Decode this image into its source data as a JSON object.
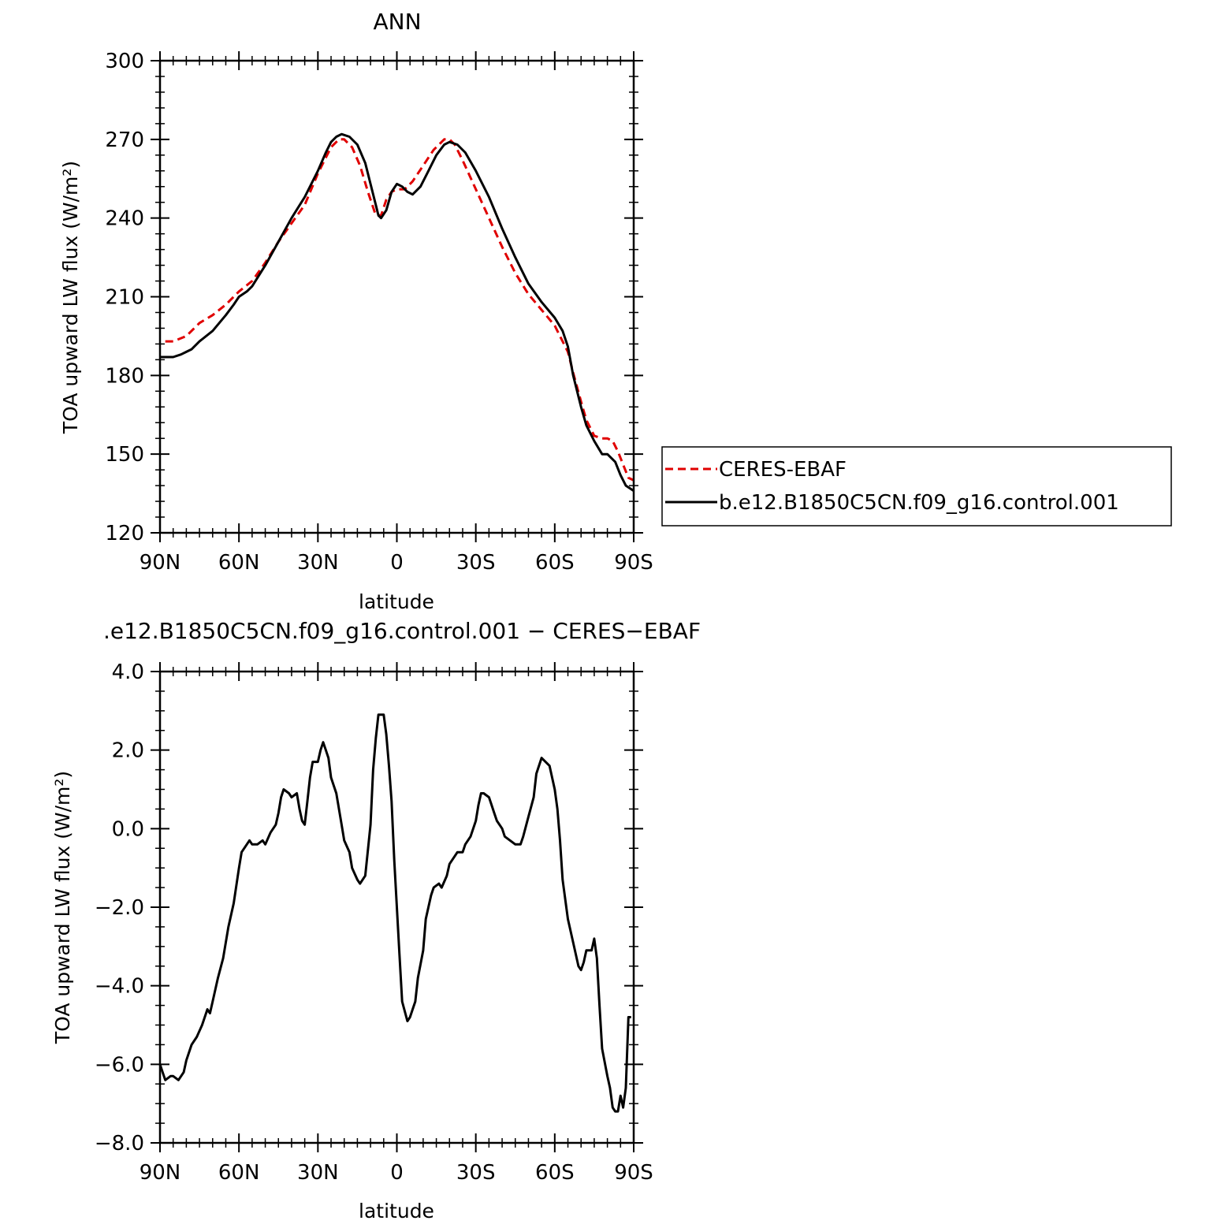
{
  "chart_data": [
    {
      "type": "line",
      "title": "ANN",
      "xlabel": "latitude",
      "ylabel": "TOA upward LW flux (W/m²)",
      "xlim": [
        90,
        -90
      ],
      "ylim": [
        120,
        300
      ],
      "x_tick_values": [
        90,
        60,
        30,
        0,
        -30,
        -60,
        -90
      ],
      "x_tick_labels": [
        "90N",
        "60N",
        "30N",
        "0",
        "30S",
        "60S",
        "90S"
      ],
      "y_tick_values": [
        120,
        150,
        180,
        210,
        240,
        270,
        300
      ],
      "y_tick_labels": [
        "120",
        "150",
        "180",
        "210",
        "240",
        "270",
        "300"
      ],
      "legend": "right",
      "series": [
        {
          "name": "CERES-EBAF",
          "color": "#e00000",
          "dash": "dashed",
          "x": [
            88,
            85,
            80,
            75,
            70,
            65,
            60,
            55,
            50,
            45,
            40,
            35,
            30,
            25,
            22,
            20,
            17,
            14,
            11,
            8,
            6,
            4,
            2,
            0,
            -3,
            -6,
            -10,
            -14,
            -18,
            -20,
            -22,
            -25,
            -30,
            -35,
            -40,
            -45,
            -50,
            -55,
            -60,
            -65,
            -67,
            -70,
            -72,
            -75,
            -78,
            -80,
            -82,
            -84,
            -86,
            -88,
            -90
          ],
          "y": [
            193,
            193,
            195,
            200,
            203,
            207,
            212,
            216,
            223,
            231,
            238,
            245,
            257,
            267,
            270,
            270,
            267,
            260,
            250,
            241,
            241,
            247,
            250,
            251,
            251,
            254,
            260,
            266,
            270,
            270,
            268,
            262,
            251,
            240,
            229,
            219,
            211,
            205,
            199,
            189,
            181,
            170,
            163,
            157,
            156,
            156,
            155,
            151,
            146,
            141,
            140
          ]
        },
        {
          "name": "b.e12.B1850C5CN.f09_g16.control.001",
          "color": "#000000",
          "dash": "solid",
          "x": [
            90,
            88,
            85,
            82,
            80,
            78,
            75,
            70,
            65,
            62,
            60,
            57,
            55,
            50,
            45,
            40,
            35,
            30,
            27,
            25,
            23,
            21,
            18,
            15,
            12,
            10,
            8,
            7,
            6,
            4,
            2,
            0,
            -2,
            -4,
            -6,
            -9,
            -12,
            -15,
            -18,
            -20,
            -23,
            -26,
            -30,
            -35,
            -40,
            -45,
            -50,
            -55,
            -60,
            -63,
            -65,
            -67,
            -70,
            -72,
            -75,
            -78,
            -80,
            -83,
            -85,
            -87,
            -90
          ],
          "y": [
            187,
            187,
            187,
            188,
            189,
            190,
            193,
            197,
            203,
            207,
            210,
            212,
            214,
            222,
            231,
            240,
            248,
            258,
            265,
            269,
            271,
            272,
            271,
            268,
            261,
            253,
            245,
            241,
            240,
            243,
            250,
            253,
            252,
            250,
            249,
            252,
            258,
            264,
            268,
            269,
            268,
            265,
            258,
            248,
            236,
            225,
            215,
            208,
            202,
            197,
            191,
            180,
            168,
            161,
            155,
            150,
            150,
            147,
            142,
            138,
            136
          ]
        }
      ]
    },
    {
      "type": "line",
      "title": ".e12.B1850C5CN.f09_g16.control.001 − CERES−EBAF",
      "xlabel": "latitude",
      "ylabel": "TOA upward LW flux (W/m²)",
      "xlim": [
        90,
        -90
      ],
      "ylim": [
        -8,
        4
      ],
      "x_tick_values": [
        90,
        60,
        30,
        0,
        -30,
        -60,
        -90
      ],
      "x_tick_labels": [
        "90N",
        "60N",
        "30N",
        "0",
        "30S",
        "60S",
        "90S"
      ],
      "y_tick_values": [
        4,
        2,
        0,
        -2,
        -4,
        -6,
        -8
      ],
      "y_tick_labels": [
        "4.0",
        "2.0",
        "0.0",
        "−2.0",
        "−4.0",
        "−6.0",
        "−8.0"
      ],
      "series": [
        {
          "color": "#000000",
          "dash": "solid",
          "x": [
            90,
            89,
            88,
            86,
            85,
            83,
            81,
            80,
            78,
            76,
            74,
            72,
            71,
            70,
            68,
            66,
            64,
            62,
            60,
            59,
            58,
            56,
            55,
            53,
            51,
            50,
            48,
            46,
            45,
            44,
            43,
            41,
            40,
            38,
            37,
            36,
            35,
            34,
            33,
            32,
            30,
            29,
            28,
            27,
            26,
            25,
            23,
            21,
            20,
            18,
            17,
            15,
            14,
            12,
            10,
            9,
            8,
            7,
            5,
            4,
            3,
            2,
            1,
            -1,
            -2,
            -4,
            -5,
            -6,
            -7,
            -8,
            -10,
            -11,
            -13,
            -14,
            -16,
            -17,
            -19,
            -20,
            -22,
            -23,
            -25,
            -26,
            -28,
            -30,
            -31,
            -32,
            -33,
            -34,
            -35,
            -36,
            -37,
            -38,
            -40,
            -41,
            -43,
            -45,
            -47,
            -48,
            -50,
            -52,
            -53,
            -55,
            -58,
            -60,
            -61,
            -62,
            -63,
            -65,
            -67,
            -69,
            -70,
            -71,
            -72,
            -74,
            -75,
            -76,
            -77,
            -78,
            -80,
            -81,
            -82,
            -83,
            -84,
            -85,
            -86,
            -87,
            -88,
            -89
          ],
          "y": [
            -6.0,
            -6.2,
            -6.4,
            -6.3,
            -6.3,
            -6.4,
            -6.2,
            -5.9,
            -5.5,
            -5.3,
            -5.0,
            -4.6,
            -4.7,
            -4.4,
            -3.8,
            -3.3,
            -2.5,
            -1.9,
            -1.0,
            -0.6,
            -0.5,
            -0.3,
            -0.4,
            -0.4,
            -0.3,
            -0.4,
            -0.1,
            0.1,
            0.4,
            0.8,
            1.0,
            0.9,
            0.8,
            0.9,
            0.5,
            0.2,
            0.1,
            0.7,
            1.3,
            1.7,
            1.7,
            2.0,
            2.2,
            2.0,
            1.8,
            1.3,
            0.9,
            0.1,
            -0.3,
            -0.6,
            -1.0,
            -1.3,
            -1.4,
            -1.2,
            0.1,
            1.5,
            2.3,
            2.9,
            2.9,
            2.4,
            1.6,
            0.7,
            -0.8,
            -3.2,
            -4.4,
            -4.9,
            -4.8,
            -4.6,
            -4.4,
            -3.8,
            -3.1,
            -2.3,
            -1.7,
            -1.5,
            -1.4,
            -1.5,
            -1.2,
            -0.9,
            -0.7,
            -0.6,
            -0.6,
            -0.4,
            -0.2,
            0.2,
            0.6,
            0.9,
            0.9,
            0.85,
            0.8,
            0.6,
            0.4,
            0.2,
            0.0,
            -0.2,
            -0.3,
            -0.4,
            -0.4,
            -0.2,
            0.3,
            0.8,
            1.4,
            1.8,
            1.6,
            1.0,
            0.5,
            -0.3,
            -1.3,
            -2.3,
            -2.9,
            -3.5,
            -3.6,
            -3.4,
            -3.1,
            -3.1,
            -2.8,
            -3.3,
            -4.5,
            -5.6,
            -6.3,
            -6.6,
            -7.1,
            -7.2,
            -7.2,
            -6.8,
            -7.1,
            -6.6,
            -4.8,
            -4.8
          ]
        }
      ]
    }
  ]
}
